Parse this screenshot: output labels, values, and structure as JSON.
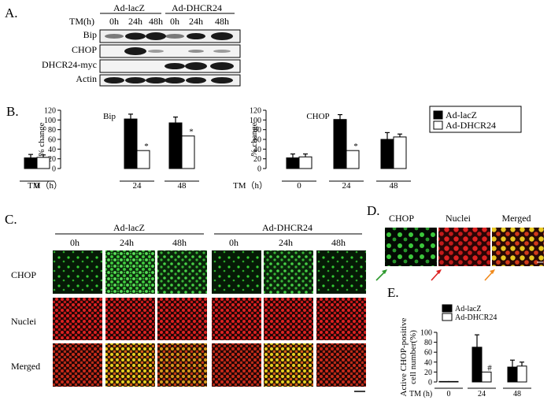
{
  "panels": {
    "a": {
      "label": "A.",
      "tm_label": "TM(h)",
      "groups": [
        "Ad-lacZ",
        "Ad-DHCR24"
      ],
      "timepoints": [
        "0h",
        "24h",
        "48h",
        "0h",
        "24h",
        "48h"
      ],
      "rows": [
        "Bip",
        "CHOP",
        "DHCR24-myc",
        "Actin"
      ]
    },
    "b": {
      "label": "B.",
      "x_axis_label": "TM（h）",
      "legend": [
        "Ad-lacZ",
        "Ad-DHCR24"
      ]
    },
    "c": {
      "label": "C.",
      "groups": [
        "Ad-lacZ",
        "Ad-DHCR24"
      ],
      "timepoints": [
        "0h",
        "24h",
        "48h",
        "0h",
        "24h",
        "48h"
      ],
      "rows": [
        "CHOP",
        "Nuclei",
        "Merged"
      ]
    },
    "d": {
      "label": "D.",
      "columns": [
        "CHOP",
        "Nuclei",
        "Merged"
      ]
    },
    "e": {
      "label": "E.",
      "x_axis_label": "TM (h)",
      "legend": [
        "Ad-lacZ",
        "Ad-DHCR24"
      ]
    }
  },
  "colors": {
    "ad_lacz": "#000000",
    "ad_dhcr24": "#ffffff",
    "chop_stain": "#33cc33",
    "nuclei_stain": "#dd2222",
    "merged_stain": "#e8d020",
    "arrow_green": "#2f9a2f",
    "arrow_red": "#dd2222",
    "arrow_orange": "#f08a1c"
  },
  "chart_data": [
    {
      "type": "bar",
      "panel": "B",
      "title": "Bip",
      "ylabel": "% change",
      "xlabel": "TM（h）",
      "categories": [
        "0",
        "24",
        "48"
      ],
      "ylim": [
        0,
        120
      ],
      "yticks": [
        0,
        20,
        40,
        60,
        80,
        100,
        120
      ],
      "legend_position": "right",
      "series": [
        {
          "name": "Ad-lacZ",
          "values": [
            22,
            102,
            94
          ],
          "errors": [
            7,
            10,
            12
          ]
        },
        {
          "name": "Ad-DHCR24",
          "values": [
            23,
            37,
            67
          ],
          "errors": [
            5,
            0,
            0
          ]
        }
      ],
      "annotations": [
        {
          "category": "24",
          "series": "Ad-DHCR24",
          "text": "*"
        },
        {
          "category": "48",
          "series": "Ad-DHCR24",
          "text": "*"
        }
      ]
    },
    {
      "type": "bar",
      "panel": "B",
      "title": "CHOP",
      "ylabel": "% change",
      "xlabel": "TM（h）",
      "categories": [
        "0",
        "24",
        "48"
      ],
      "ylim": [
        0,
        120
      ],
      "yticks": [
        0,
        20,
        40,
        60,
        80,
        100,
        120
      ],
      "series": [
        {
          "name": "Ad-lacZ",
          "values": [
            22,
            101,
            60
          ],
          "errors": [
            8,
            10,
            14
          ]
        },
        {
          "name": "Ad-DHCR24",
          "values": [
            24,
            37,
            65
          ],
          "errors": [
            6,
            0,
            6
          ]
        }
      ],
      "annotations": [
        {
          "category": "24",
          "series": "Ad-DHCR24",
          "text": "*"
        }
      ]
    },
    {
      "type": "bar",
      "panel": "E",
      "ylabel": "Active CHOP-positive cell number(%)",
      "xlabel": "TM (h)",
      "categories": [
        "0",
        "24",
        "48"
      ],
      "ylim": [
        0,
        100
      ],
      "yticks": [
        0,
        20,
        40,
        60,
        80,
        100
      ],
      "legend_position": "top-right",
      "series": [
        {
          "name": "Ad-lacZ",
          "values": [
            1,
            70,
            30
          ],
          "errors": [
            0,
            25,
            14
          ]
        },
        {
          "name": "Ad-DHCR24",
          "values": [
            1,
            20,
            32
          ],
          "errors": [
            0,
            0,
            8
          ]
        }
      ],
      "annotations": [
        {
          "category": "24",
          "series": "Ad-DHCR24",
          "text": "#"
        }
      ]
    }
  ]
}
